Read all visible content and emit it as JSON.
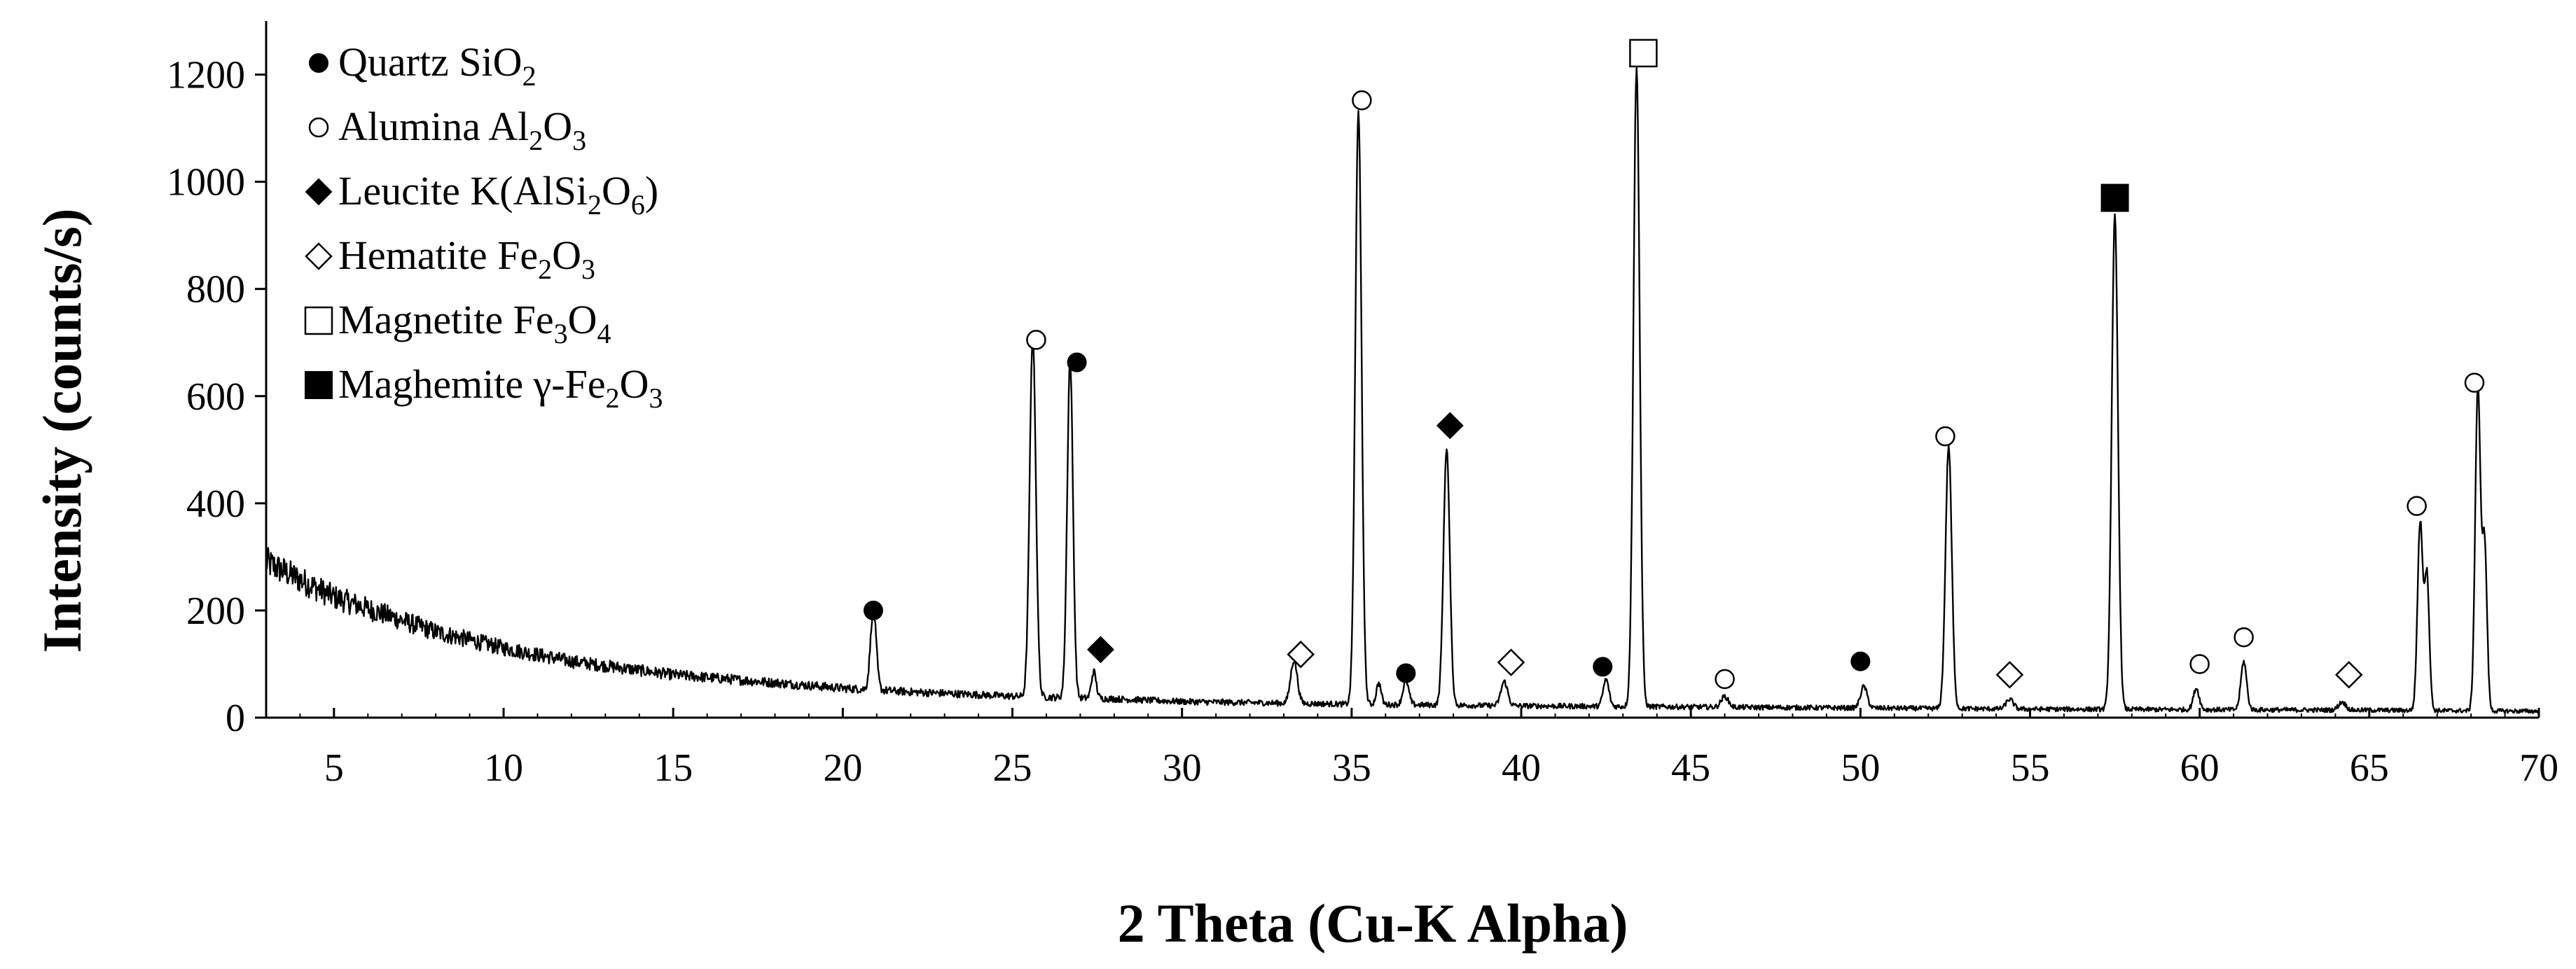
{
  "chart_data": {
    "type": "line",
    "xlabel": "2 Theta (Cu-K Alpha)",
    "ylabel": "Intensity (counts/s)",
    "xlim": [
      3,
      70
    ],
    "ylim": [
      0,
      1300
    ],
    "x_ticks": [
      5,
      10,
      15,
      20,
      25,
      30,
      35,
      40,
      45,
      50,
      55,
      60,
      65,
      70
    ],
    "y_ticks": [
      0,
      200,
      400,
      600,
      800,
      1000,
      1200
    ],
    "grid": false,
    "legend_position": "top-left",
    "legend": [
      {
        "symbol": "filled-circle",
        "prefix": "Quartz SiO",
        "sub": "2",
        "rest": ""
      },
      {
        "symbol": "open-circle",
        "prefix": "Alumina Al",
        "sub": "2",
        "mid": "O",
        "sub2": "3"
      },
      {
        "symbol": "filled-diamond",
        "prefix": "Leucite K(AlSi",
        "sub": "2",
        "mid": "O",
        "sub2": "6",
        "rest": ")"
      },
      {
        "symbol": "open-diamond",
        "prefix": "Hematite Fe",
        "sub": "2",
        "mid": "O",
        "sub2": "3"
      },
      {
        "symbol": "open-square",
        "prefix": "Magnetite Fe",
        "sub": "3",
        "mid": "O",
        "sub2": "4"
      },
      {
        "symbol": "filled-square",
        "prefix": "Maghemite γ-Fe",
        "sub": "2",
        "mid": "O",
        "sub2": "3"
      }
    ],
    "background": [
      [
        3,
        290
      ],
      [
        5,
        225
      ],
      [
        8,
        160
      ],
      [
        10,
        130
      ],
      [
        12,
        105
      ],
      [
        15,
        80
      ],
      [
        18,
        65
      ],
      [
        20,
        55
      ],
      [
        22,
        48
      ],
      [
        25,
        40
      ],
      [
        28,
        35
      ],
      [
        30,
        30
      ],
      [
        35,
        25
      ],
      [
        40,
        22
      ],
      [
        45,
        20
      ],
      [
        50,
        18
      ],
      [
        55,
        16
      ],
      [
        60,
        15
      ],
      [
        65,
        14
      ],
      [
        70,
        12
      ]
    ],
    "peaks": [
      {
        "x": 20.9,
        "y": 150,
        "w": 0.12
      },
      {
        "x": 25.6,
        "y": 670,
        "w": 0.13
      },
      {
        "x": 26.7,
        "y": 630,
        "w": 0.12
      },
      {
        "x": 27.4,
        "y": 50,
        "w": 0.1
      },
      {
        "x": 33.3,
        "y": 80,
        "w": 0.14
      },
      {
        "x": 35.2,
        "y": 1110,
        "w": 0.13
      },
      {
        "x": 35.8,
        "y": 40,
        "w": 0.1
      },
      {
        "x": 36.6,
        "y": 45,
        "w": 0.12
      },
      {
        "x": 37.8,
        "y": 480,
        "w": 0.13
      },
      {
        "x": 39.5,
        "y": 45,
        "w": 0.14
      },
      {
        "x": 42.5,
        "y": 50,
        "w": 0.12
      },
      {
        "x": 43.4,
        "y": 1190,
        "w": 0.13
      },
      {
        "x": 46.0,
        "y": 20,
        "w": 0.15
      },
      {
        "x": 50.1,
        "y": 40,
        "w": 0.14
      },
      {
        "x": 52.6,
        "y": 490,
        "w": 0.13
      },
      {
        "x": 54.4,
        "y": 18,
        "w": 0.15
      },
      {
        "x": 57.5,
        "y": 920,
        "w": 0.13
      },
      {
        "x": 59.9,
        "y": 40,
        "w": 0.12
      },
      {
        "x": 61.3,
        "y": 90,
        "w": 0.12
      },
      {
        "x": 64.2,
        "y": 15,
        "w": 0.15
      },
      {
        "x": 66.5,
        "y": 350,
        "w": 0.11
      },
      {
        "x": 66.7,
        "y": 250,
        "w": 0.1
      },
      {
        "x": 68.2,
        "y": 600,
        "w": 0.11
      },
      {
        "x": 68.4,
        "y": 310,
        "w": 0.1
      }
    ],
    "annotations": [
      {
        "symbol": "filled-circle",
        "x": 20.9,
        "y": 200
      },
      {
        "symbol": "open-circle",
        "x": 25.7,
        "y": 705
      },
      {
        "symbol": "filled-circle",
        "x": 26.9,
        "y": 663
      },
      {
        "symbol": "filled-diamond",
        "x": 27.6,
        "y": 127
      },
      {
        "symbol": "open-diamond",
        "x": 33.5,
        "y": 118
      },
      {
        "symbol": "open-circle",
        "x": 35.3,
        "y": 1152
      },
      {
        "symbol": "filled-circle",
        "x": 36.6,
        "y": 83
      },
      {
        "symbol": "filled-diamond",
        "x": 37.9,
        "y": 545
      },
      {
        "symbol": "open-diamond",
        "x": 39.7,
        "y": 103
      },
      {
        "symbol": "filled-circle",
        "x": 42.4,
        "y": 95
      },
      {
        "symbol": "open-square",
        "x": 43.6,
        "y": 1240
      },
      {
        "symbol": "open-circle",
        "x": 46.0,
        "y": 72
      },
      {
        "symbol": "filled-circle",
        "x": 50.0,
        "y": 105
      },
      {
        "symbol": "open-circle",
        "x": 52.5,
        "y": 525
      },
      {
        "symbol": "open-diamond",
        "x": 54.4,
        "y": 80
      },
      {
        "symbol": "filled-square",
        "x": 57.5,
        "y": 970
      },
      {
        "symbol": "open-circle",
        "x": 60.0,
        "y": 100
      },
      {
        "symbol": "open-circle",
        "x": 61.3,
        "y": 150
      },
      {
        "symbol": "open-diamond",
        "x": 64.4,
        "y": 80
      },
      {
        "symbol": "open-circle",
        "x": 66.4,
        "y": 395
      },
      {
        "symbol": "open-circle",
        "x": 68.1,
        "y": 625
      }
    ]
  }
}
